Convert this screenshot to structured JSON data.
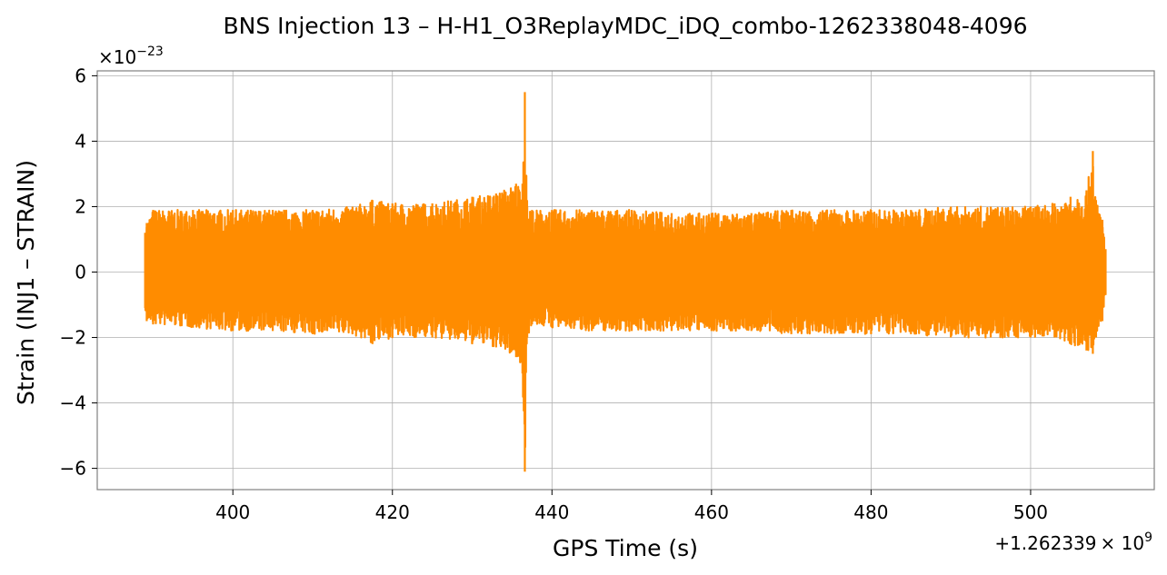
{
  "chart_data": {
    "type": "line",
    "title": "BNS Injection 13 – H-H1_O3ReplayMDC_iDQ_combo-1262338048-4096",
    "xlabel": "GPS Time (s)",
    "ylabel": "Strain (INJ1 – STRAIN)",
    "x_offset_text": "+1.262339",
    "x_offset_times": "× 10",
    "x_offset_exponent": "9",
    "y_multiplier_text": "×10",
    "y_multiplier_exponent": "−23",
    "x_ticks": [
      {
        "value": 400,
        "label": "400"
      },
      {
        "value": 420,
        "label": "420"
      },
      {
        "value": 440,
        "label": "440"
      },
      {
        "value": 460,
        "label": "460"
      },
      {
        "value": 480,
        "label": "480"
      },
      {
        "value": 500,
        "label": "500"
      }
    ],
    "y_ticks": [
      {
        "value": 6,
        "label": "6"
      },
      {
        "value": 4,
        "label": "4"
      },
      {
        "value": 2,
        "label": "2"
      },
      {
        "value": 0,
        "label": "0"
      },
      {
        "value": -2,
        "label": "−2"
      },
      {
        "value": -4,
        "label": "−4"
      },
      {
        "value": -6,
        "label": "−6"
      }
    ],
    "xlim": [
      383.0,
      515.5
    ],
    "ylim": [
      -6.65,
      6.15
    ],
    "grid": true,
    "series": [
      {
        "color": "#ff8c00",
        "x_range": [
          389.0,
          509.4
        ],
        "envelope": [
          {
            "x": 389.0,
            "max": 1.2,
            "min": -1.1
          },
          {
            "x": 389.2,
            "max": 1.5,
            "min": -1.5
          },
          {
            "x": 390.0,
            "max": 1.9,
            "min": -1.6
          },
          {
            "x": 395.0,
            "max": 1.9,
            "min": -1.7
          },
          {
            "x": 400.0,
            "max": 1.9,
            "min": -1.8
          },
          {
            "x": 405.0,
            "max": 1.9,
            "min": -1.8
          },
          {
            "x": 410.0,
            "max": 1.9,
            "min": -1.9
          },
          {
            "x": 415.0,
            "max": 2.0,
            "min": -1.9
          },
          {
            "x": 417.5,
            "max": 2.2,
            "min": -2.2
          },
          {
            "x": 420.0,
            "max": 2.1,
            "min": -2.0
          },
          {
            "x": 425.0,
            "max": 2.1,
            "min": -2.0
          },
          {
            "x": 430.0,
            "max": 2.3,
            "min": -2.2
          },
          {
            "x": 433.0,
            "max": 2.4,
            "min": -2.3
          },
          {
            "x": 435.5,
            "max": 2.7,
            "min": -2.6
          },
          {
            "x": 436.3,
            "max": 2.7,
            "min": -3.1
          },
          {
            "x": 436.6,
            "max": 5.5,
            "min": -6.1
          },
          {
            "x": 436.9,
            "max": 2.0,
            "min": -2.0
          },
          {
            "x": 437.5,
            "max": 1.9,
            "min": -1.6
          },
          {
            "x": 440.0,
            "max": 1.9,
            "min": -1.7
          },
          {
            "x": 445.0,
            "max": 1.9,
            "min": -1.8
          },
          {
            "x": 450.0,
            "max": 1.9,
            "min": -1.8
          },
          {
            "x": 455.0,
            "max": 1.8,
            "min": -1.8
          },
          {
            "x": 460.0,
            "max": 1.8,
            "min": -1.8
          },
          {
            "x": 465.0,
            "max": 1.8,
            "min": -1.8
          },
          {
            "x": 470.0,
            "max": 1.9,
            "min": -1.9
          },
          {
            "x": 475.0,
            "max": 1.9,
            "min": -1.9
          },
          {
            "x": 480.0,
            "max": 1.9,
            "min": -1.9
          },
          {
            "x": 485.0,
            "max": 1.9,
            "min": -1.9
          },
          {
            "x": 490.0,
            "max": 2.0,
            "min": -2.0
          },
          {
            "x": 495.0,
            "max": 2.0,
            "min": -2.0
          },
          {
            "x": 500.0,
            "max": 2.0,
            "min": -2.0
          },
          {
            "x": 503.0,
            "max": 2.1,
            "min": -2.0
          },
          {
            "x": 505.0,
            "max": 2.3,
            "min": -2.2
          },
          {
            "x": 507.0,
            "max": 2.5,
            "min": -2.4
          },
          {
            "x": 507.8,
            "max": 3.7,
            "min": -2.5
          },
          {
            "x": 508.2,
            "max": 2.2,
            "min": -2.0
          },
          {
            "x": 509.0,
            "max": 1.6,
            "min": -1.5
          },
          {
            "x": 509.4,
            "max": 0.7,
            "min": -0.7
          }
        ]
      }
    ]
  }
}
